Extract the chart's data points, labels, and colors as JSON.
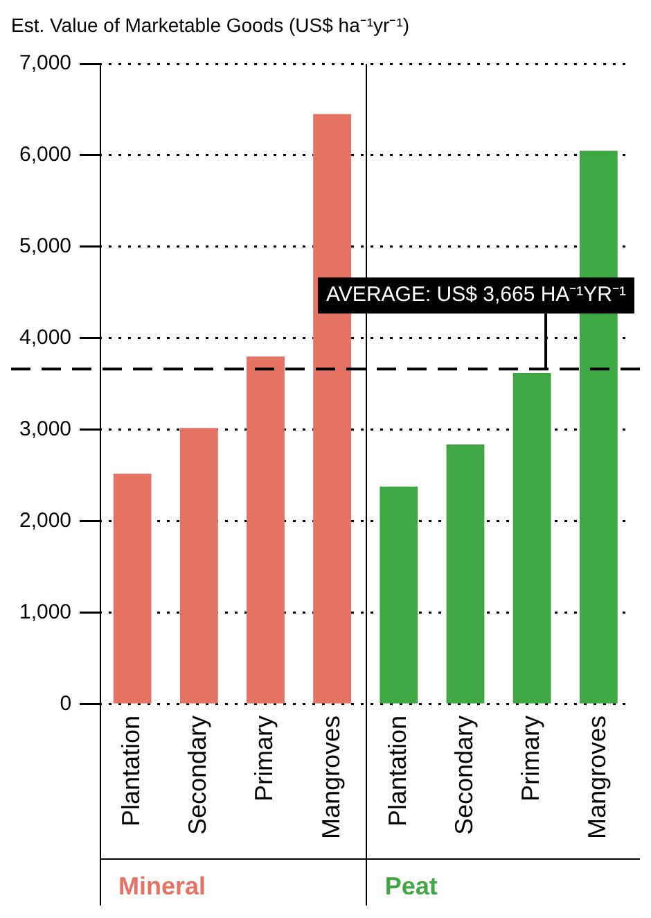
{
  "chart_data": {
    "type": "bar",
    "ylabel": "Est. Value of Marketable Goods (US$ ha⁻¹yr⁻¹)",
    "categories": [
      "Plantation",
      "Secondary",
      "Primary",
      "Mangroves",
      "Plantation",
      "Secondary",
      "Primary",
      "Mangroves"
    ],
    "series": [
      {
        "name": "Mineral",
        "color": "#e57363",
        "values": [
          2520,
          3020,
          3800,
          6450,
          null,
          null,
          null,
          null
        ]
      },
      {
        "name": "Peat",
        "color": "#3fa845",
        "values": [
          null,
          null,
          null,
          null,
          2380,
          2840,
          3620,
          6050
        ]
      }
    ],
    "ylim": [
      0,
      7000
    ],
    "yticks": [
      {
        "value": 0,
        "label": "0"
      },
      {
        "value": 1000,
        "label": "1,000"
      },
      {
        "value": 2000,
        "label": "2,000"
      },
      {
        "value": 3000,
        "label": "3,000"
      },
      {
        "value": 4000,
        "label": "4,000"
      },
      {
        "value": 5000,
        "label": "5,000"
      },
      {
        "value": 6000,
        "label": "6,000"
      },
      {
        "value": 7000,
        "label": "7,000"
      }
    ],
    "grid": "y",
    "legend": false,
    "ref_lines": [
      {
        "axis": "y",
        "value": 3665,
        "label": "AVERAGE: US$ 3,665 HA⁻¹YR⁻¹",
        "line_style": "dashed",
        "color": "#000000"
      }
    ]
  }
}
